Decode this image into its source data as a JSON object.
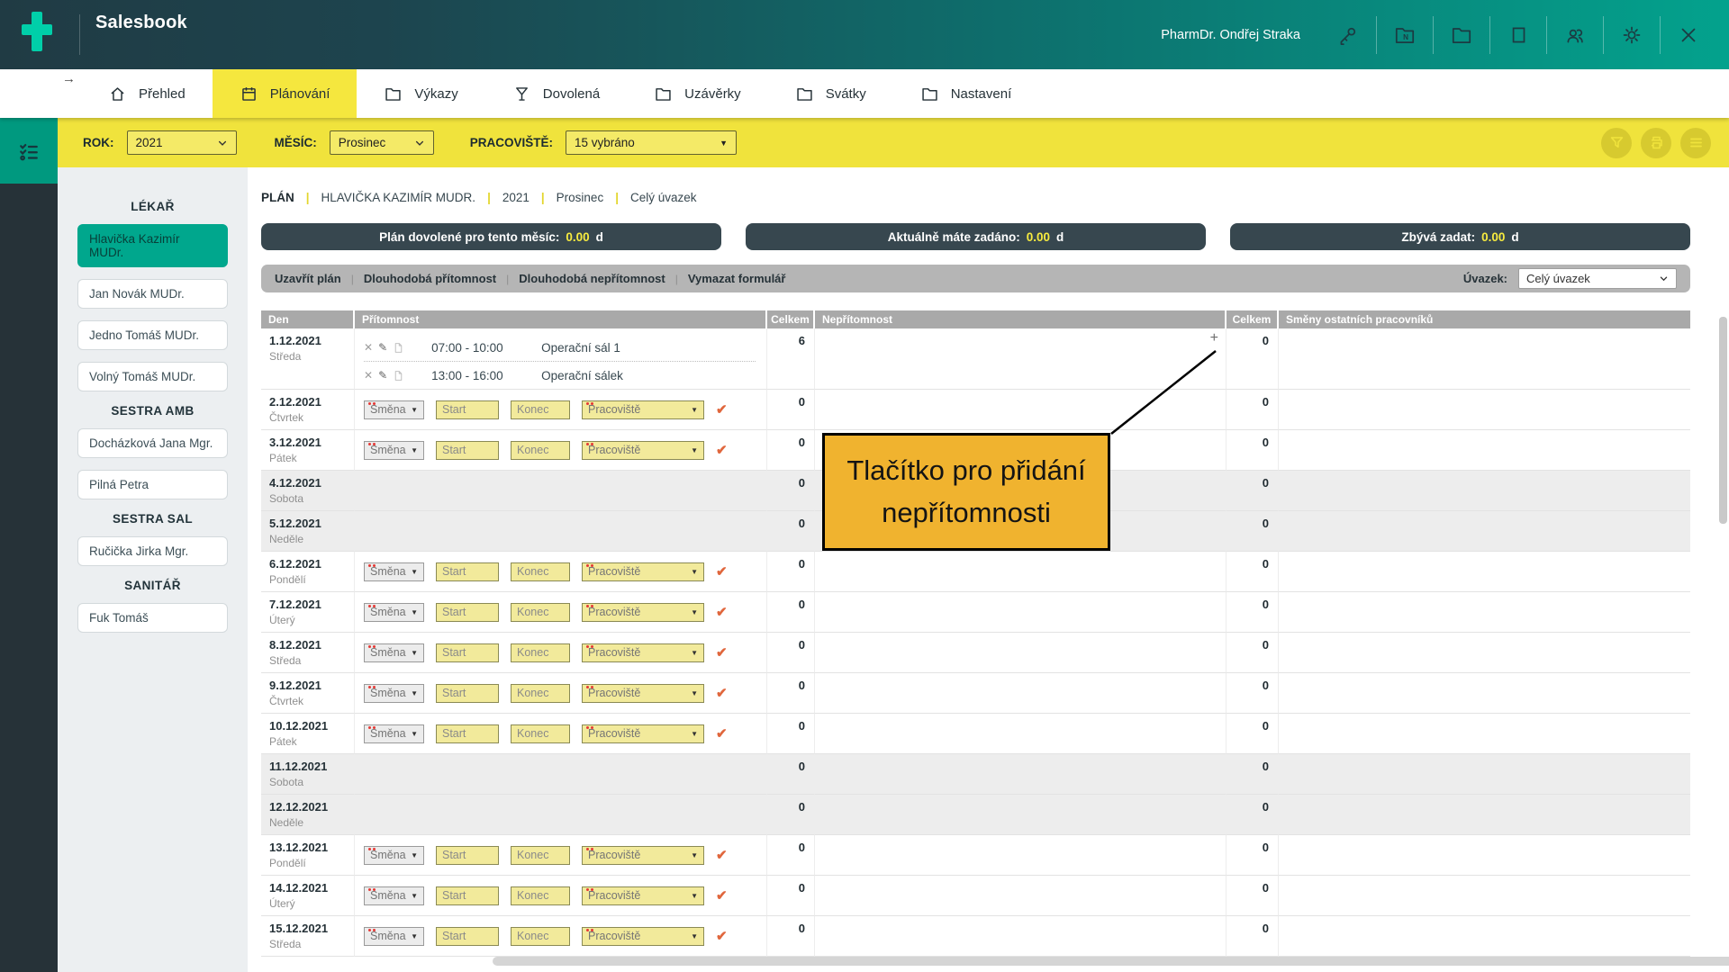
{
  "colors": {
    "brand_teal": "#03a28d",
    "logo_mint": "#00cfa9",
    "header_dark": "#203b44",
    "active_yellow": "#f5e73e",
    "filter_yellow": "#f0e33c",
    "sidebar_dark": "#263238",
    "rail_teal": "#00997f",
    "selected_staff_teal": "#00a78d",
    "pill_slate": "#37474f",
    "pill_value_yellow": "#f7eb3f",
    "toolbar_gray": "#b5b5b5",
    "table_header_gray": "#a9a9a9",
    "weekend_gray": "#ededed",
    "annotation_orange": "#f0b32f",
    "required_red": "#e53935",
    "check_orange": "#e0663c"
  },
  "header": {
    "app_title": "Salesbook",
    "user_name": "PharmDr. Ondřej Straka",
    "icon_names": [
      "key-icon",
      "reports-folder-icon",
      "folder-icon",
      "window-icon",
      "users-icon",
      "settings-gear-icon",
      "close-icon"
    ]
  },
  "tabs": [
    {
      "id": "prehled",
      "label": "Přehled",
      "icon": "home",
      "active": false
    },
    {
      "id": "planovani",
      "label": "Plánování",
      "icon": "calendar",
      "active": true
    },
    {
      "id": "vykazy",
      "label": "Výkazy",
      "icon": "folder",
      "active": false
    },
    {
      "id": "dovolena",
      "label": "Dovolená",
      "icon": "cocktail",
      "active": false
    },
    {
      "id": "uzaverky",
      "label": "Uzávěrky",
      "icon": "folder",
      "active": false
    },
    {
      "id": "svatky",
      "label": "Svátky",
      "icon": "folder",
      "active": false
    },
    {
      "id": "nastaveni",
      "label": "Nastavení",
      "icon": "folder",
      "active": false
    }
  ],
  "back_arrow": "→",
  "filters": {
    "rok_label": "ROK:",
    "rok_value": "2021",
    "mesic_label": "MĚSÍC:",
    "mesic_value": "Prosinec",
    "pracoviste_label": "PRACOVIŠTĚ:",
    "pracoviste_value": "15 vybráno",
    "action_icon_names": [
      "filter-funnel-icon",
      "print-icon",
      "menu-icon"
    ]
  },
  "sidebar": {
    "sections": [
      {
        "title": "LÉKAŘ",
        "people": [
          {
            "name": "Hlavička Kazimír MUDr.",
            "selected": true
          },
          {
            "name": "Jan Novák MUDr.",
            "selected": false
          },
          {
            "name": "Jedno Tomáš MUDr.",
            "selected": false
          },
          {
            "name": "Volný Tomáš MUDr.",
            "selected": false
          }
        ]
      },
      {
        "title": "SESTRA AMB",
        "people": [
          {
            "name": "Docházková Jana Mgr.",
            "selected": false
          },
          {
            "name": "Pilná Petra",
            "selected": false
          }
        ]
      },
      {
        "title": "SESTRA SAL",
        "people": [
          {
            "name": "Ručička Jirka Mgr.",
            "selected": false
          }
        ]
      },
      {
        "title": "SANITÁŘ",
        "people": [
          {
            "name": "Fuk Tomáš",
            "selected": false
          }
        ]
      }
    ]
  },
  "plan": {
    "breadcrumb": [
      "PLÁN",
      "HLAVIČKA KAZIMÍR MUDR.",
      "2021",
      "Prosinec",
      "Celý úvazek"
    ],
    "summary": [
      {
        "label": "Plán dovolené pro tento měsíc:",
        "value": "0.00",
        "unit": "d"
      },
      {
        "label": "Aktuálně máte zadáno:",
        "value": "0.00",
        "unit": "d"
      },
      {
        "label": "Zbývá zadat:",
        "value": "0.00",
        "unit": "d"
      }
    ],
    "actions": [
      "Uzavřít plán",
      "Dlouhodobá přítomnost",
      "Dlouhodobá nepřítomnost",
      "Vymazat formulář"
    ],
    "uvazek_label": "Úvazek:",
    "uvazek_value": "Celý úvazek"
  },
  "table": {
    "columns": [
      "Den",
      "Přítomnost",
      "Celkem",
      "Nepřítomnost",
      "Celkem",
      "Směny ostatních pracovníků"
    ],
    "form": {
      "smena": "Směna",
      "start": "Start",
      "konec": "Konec",
      "pracoviste": "Pracoviště"
    },
    "days": [
      {
        "date": "1.12.2021",
        "weekday": "Středa",
        "kind": "entries",
        "present_total": "6",
        "absent_total": "0",
        "plus_button": true,
        "entries": [
          {
            "time": "07:00 - 10:00",
            "place": "Operační sál 1"
          },
          {
            "time": "13:00 - 16:00",
            "place": "Operační sálek"
          }
        ]
      },
      {
        "date": "2.12.2021",
        "weekday": "Čtvrtek",
        "kind": "form",
        "present_total": "0",
        "absent_total": "0"
      },
      {
        "date": "3.12.2021",
        "weekday": "Pátek",
        "kind": "form",
        "present_total": "0",
        "absent_total": "0"
      },
      {
        "date": "4.12.2021",
        "weekday": "Sobota",
        "kind": "empty",
        "present_total": "0",
        "absent_total": "0"
      },
      {
        "date": "5.12.2021",
        "weekday": "Neděle",
        "kind": "empty",
        "present_total": "0",
        "absent_total": "0"
      },
      {
        "date": "6.12.2021",
        "weekday": "Pondělí",
        "kind": "form",
        "present_total": "0",
        "absent_total": "0"
      },
      {
        "date": "7.12.2021",
        "weekday": "Úterý",
        "kind": "form",
        "present_total": "0",
        "absent_total": "0"
      },
      {
        "date": "8.12.2021",
        "weekday": "Středa",
        "kind": "form",
        "present_total": "0",
        "absent_total": "0"
      },
      {
        "date": "9.12.2021",
        "weekday": "Čtvrtek",
        "kind": "form",
        "present_total": "0",
        "absent_total": "0"
      },
      {
        "date": "10.12.2021",
        "weekday": "Pátek",
        "kind": "form",
        "present_total": "0",
        "absent_total": "0"
      },
      {
        "date": "11.12.2021",
        "weekday": "Sobota",
        "kind": "empty",
        "present_total": "0",
        "absent_total": "0"
      },
      {
        "date": "12.12.2021",
        "weekday": "Neděle",
        "kind": "empty",
        "present_total": "0",
        "absent_total": "0"
      },
      {
        "date": "13.12.2021",
        "weekday": "Pondělí",
        "kind": "form",
        "present_total": "0",
        "absent_total": "0"
      },
      {
        "date": "14.12.2021",
        "weekday": "Úterý",
        "kind": "form",
        "present_total": "0",
        "absent_total": "0"
      },
      {
        "date": "15.12.2021",
        "weekday": "Středa",
        "kind": "form",
        "present_total": "0",
        "absent_total": "0"
      }
    ]
  },
  "annotation": {
    "text": "Tlačítko pro přidání nepřítomnosti"
  }
}
